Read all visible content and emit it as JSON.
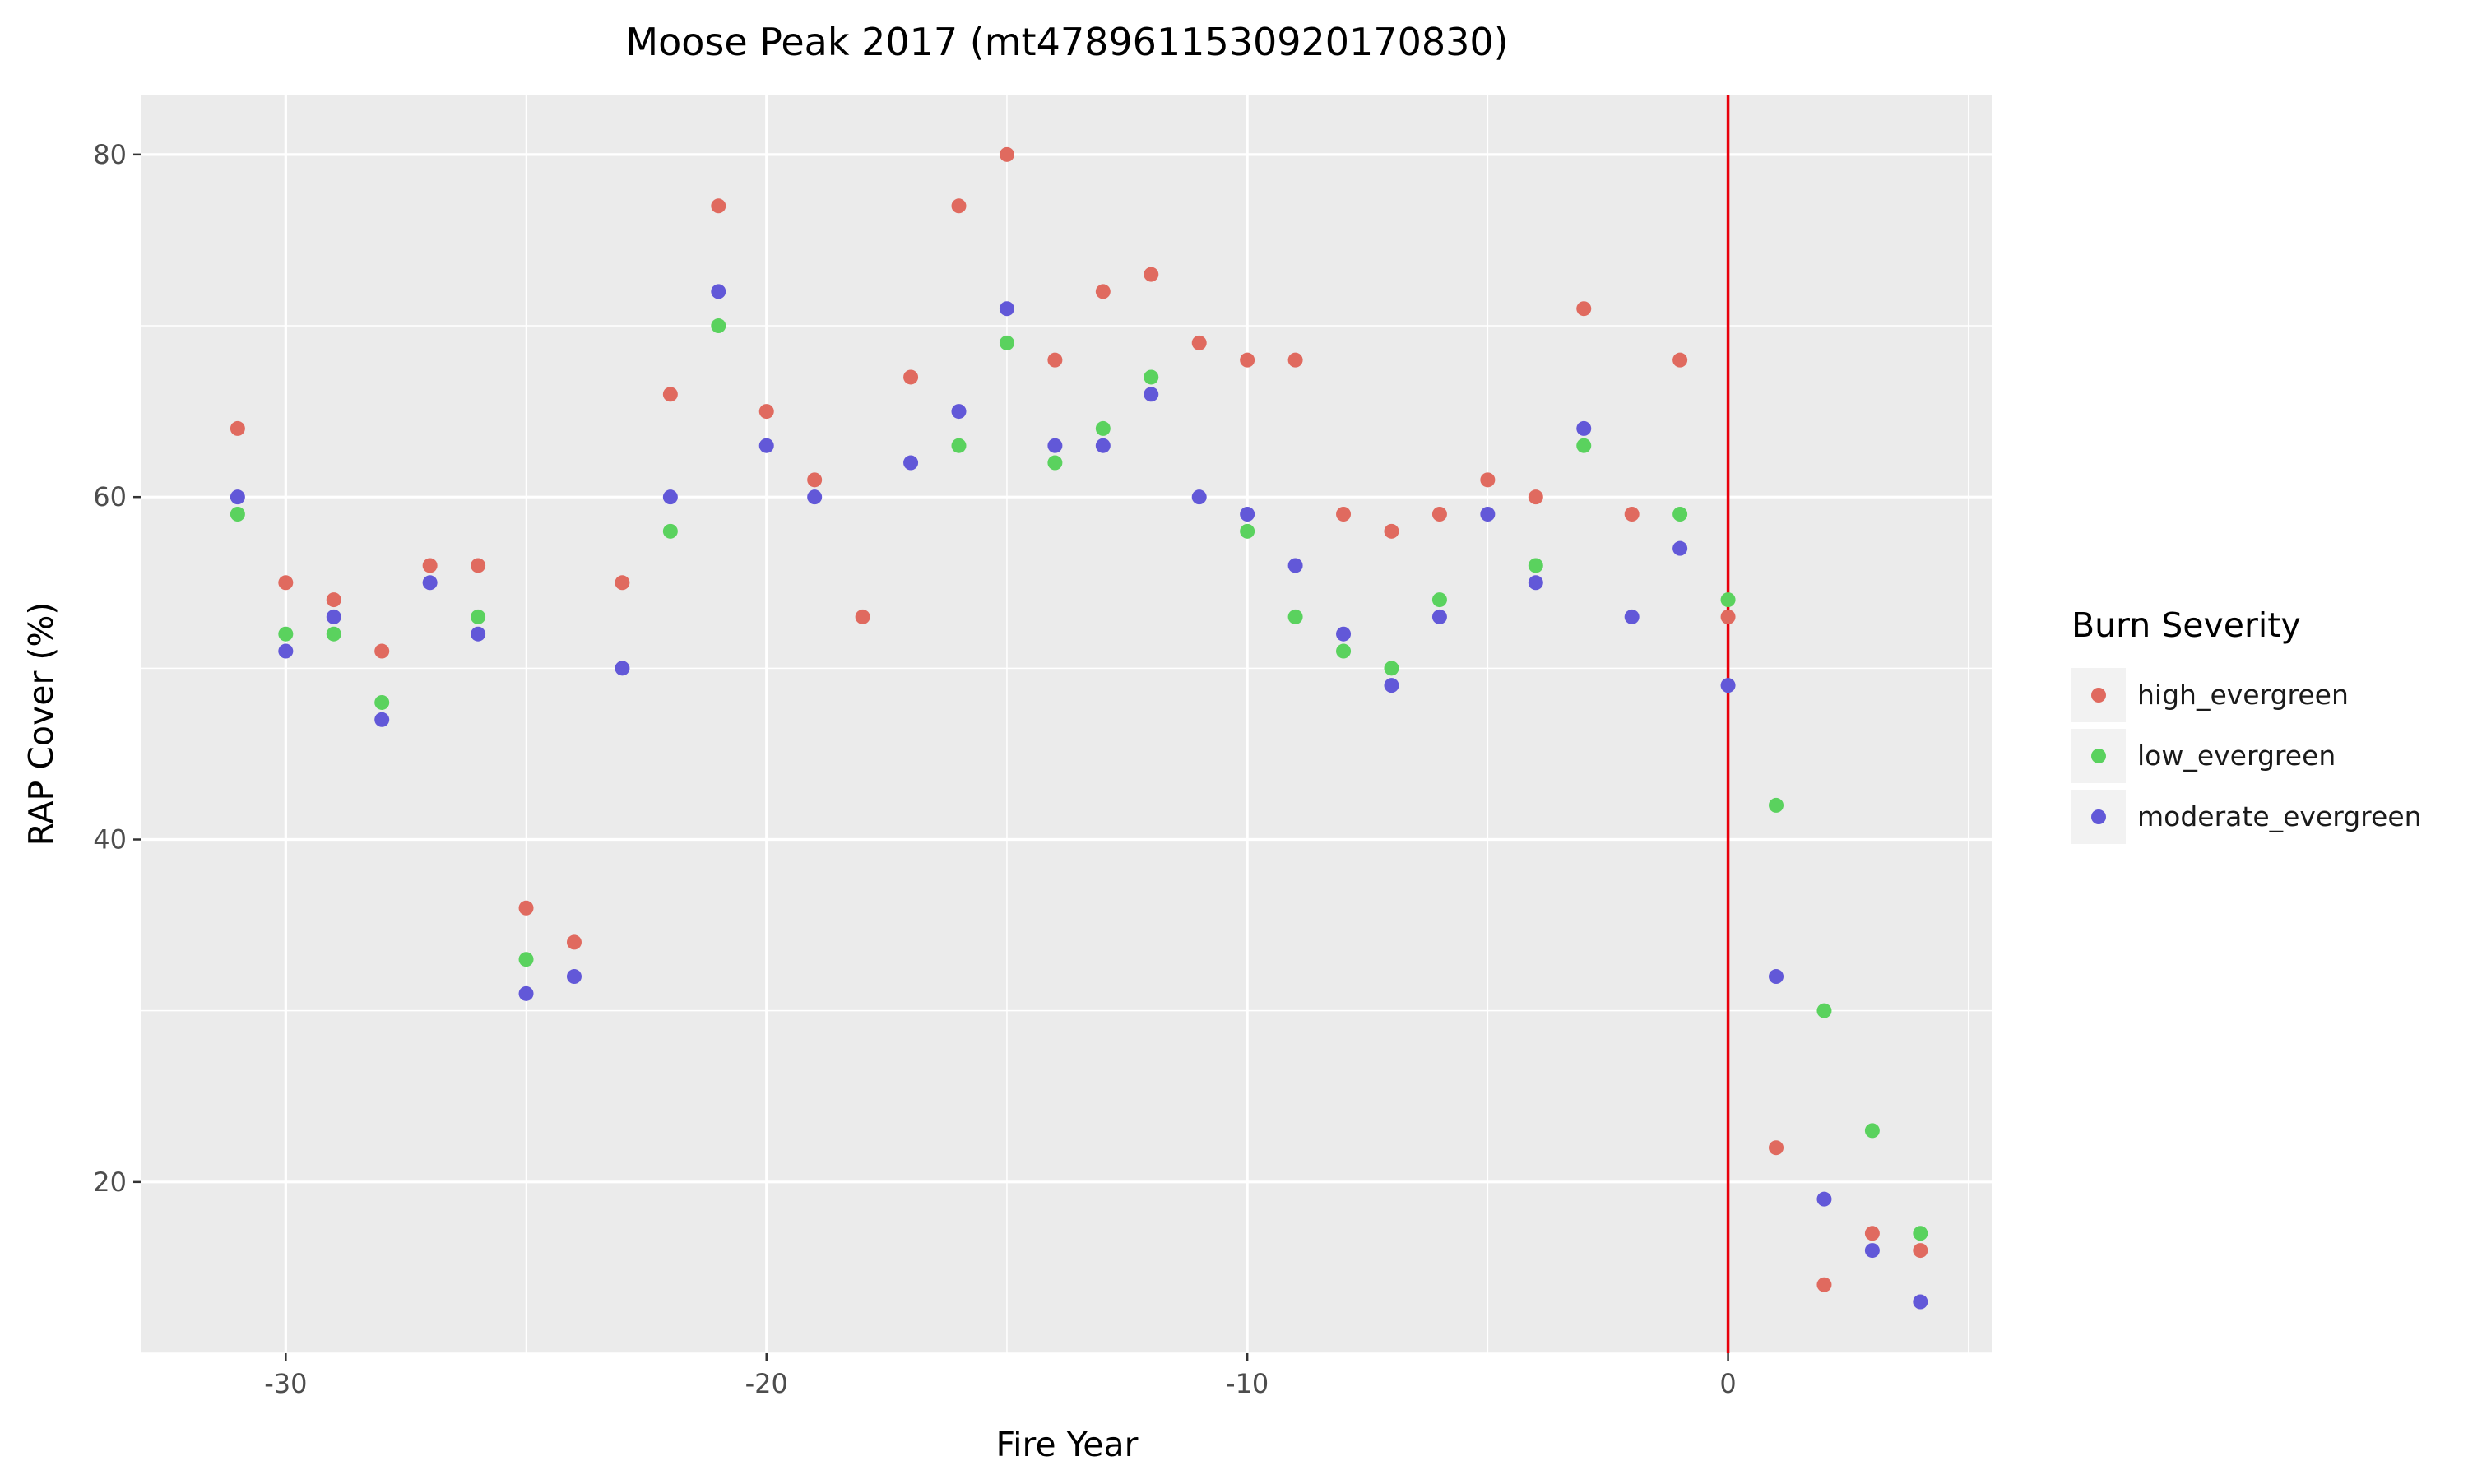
{
  "chart_data": {
    "type": "scatter",
    "title": "Moose Peak 2017 (mt4789611530920170830)",
    "xlabel": "Fire Year",
    "ylabel": "RAP Cover (%)",
    "xlim": [
      -33,
      5.5
    ],
    "ylim": [
      10,
      83.5
    ],
    "xticks": [
      -30,
      -20,
      -10,
      0
    ],
    "yticks": [
      20,
      40,
      60,
      80
    ],
    "grid": true,
    "vline": {
      "x": 0,
      "color": "#e8000b"
    },
    "legend": {
      "title": "Burn Severity",
      "position": "right"
    },
    "series": [
      {
        "name": "high_evergreen",
        "color": "#e06a5f",
        "points": [
          [
            -31,
            64
          ],
          [
            -30,
            55
          ],
          [
            -29,
            54
          ],
          [
            -28,
            51
          ],
          [
            -27,
            56
          ],
          [
            -26,
            56
          ],
          [
            -25,
            36
          ],
          [
            -24,
            34
          ],
          [
            -23,
            55
          ],
          [
            -22,
            66
          ],
          [
            -21,
            77
          ],
          [
            -20,
            65
          ],
          [
            -19,
            61
          ],
          [
            -18,
            53
          ],
          [
            -17,
            67
          ],
          [
            -16,
            77
          ],
          [
            -15,
            80
          ],
          [
            -14,
            68
          ],
          [
            -13,
            72
          ],
          [
            -12,
            73
          ],
          [
            -11,
            69
          ],
          [
            -10,
            68
          ],
          [
            -9,
            68
          ],
          [
            -8,
            59
          ],
          [
            -7,
            58
          ],
          [
            -6,
            59
          ],
          [
            -5,
            61
          ],
          [
            -4,
            60
          ],
          [
            -3,
            71
          ],
          [
            -2,
            59
          ],
          [
            -1,
            68
          ],
          [
            0,
            53
          ],
          [
            1,
            22
          ],
          [
            2,
            14
          ],
          [
            3,
            17
          ],
          [
            4,
            16
          ]
        ]
      },
      {
        "name": "low_evergreen",
        "color": "#5ad25e",
        "points": [
          [
            -31,
            59
          ],
          [
            -30,
            52
          ],
          [
            -29,
            52
          ],
          [
            -28,
            48
          ],
          [
            -26,
            53
          ],
          [
            -25,
            33
          ],
          [
            -22,
            58
          ],
          [
            -21,
            70
          ],
          [
            -16,
            63
          ],
          [
            -15,
            69
          ],
          [
            -14,
            62
          ],
          [
            -13,
            64
          ],
          [
            -12,
            67
          ],
          [
            -10,
            58
          ],
          [
            -9,
            53
          ],
          [
            -8,
            51
          ],
          [
            -7,
            50
          ],
          [
            -6,
            54
          ],
          [
            -4,
            56
          ],
          [
            -3,
            63
          ],
          [
            -1,
            59
          ],
          [
            0,
            54
          ],
          [
            1,
            42
          ],
          [
            2,
            30
          ],
          [
            3,
            23
          ],
          [
            4,
            17
          ]
        ]
      },
      {
        "name": "moderate_evergreen",
        "color": "#6258d8",
        "points": [
          [
            -31,
            60
          ],
          [
            -30,
            51
          ],
          [
            -29,
            53
          ],
          [
            -28,
            47
          ],
          [
            -27,
            55
          ],
          [
            -26,
            52
          ],
          [
            -25,
            31
          ],
          [
            -24,
            32
          ],
          [
            -23,
            50
          ],
          [
            -22,
            60
          ],
          [
            -21,
            72
          ],
          [
            -20,
            63
          ],
          [
            -19,
            60
          ],
          [
            -17,
            62
          ],
          [
            -16,
            65
          ],
          [
            -15,
            71
          ],
          [
            -14,
            63
          ],
          [
            -13,
            63
          ],
          [
            -12,
            66
          ],
          [
            -11,
            60
          ],
          [
            -10,
            59
          ],
          [
            -9,
            56
          ],
          [
            -8,
            52
          ],
          [
            -7,
            49
          ],
          [
            -6,
            53
          ],
          [
            -5,
            59
          ],
          [
            -4,
            55
          ],
          [
            -3,
            64
          ],
          [
            -2,
            53
          ],
          [
            -1,
            57
          ],
          [
            0,
            49
          ],
          [
            1,
            32
          ],
          [
            2,
            19
          ],
          [
            3,
            16
          ],
          [
            4,
            13
          ]
        ]
      }
    ]
  }
}
